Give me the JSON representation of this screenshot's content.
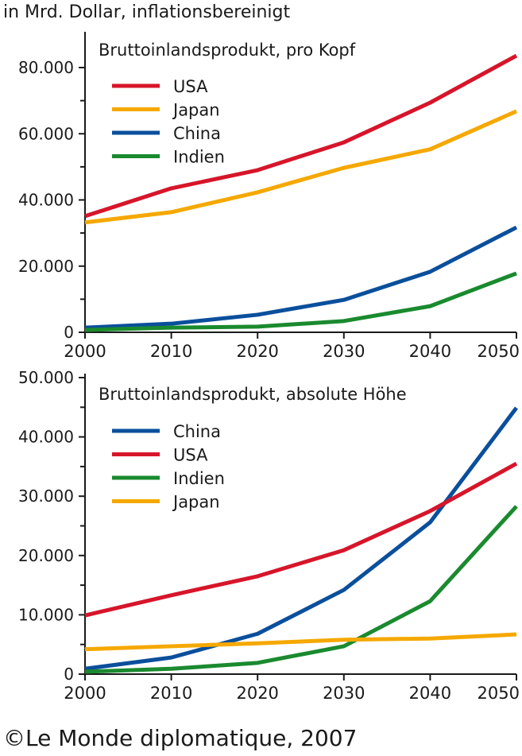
{
  "header": {
    "unit_note": "in Mrd. Dollar, inflationsbereinigt"
  },
  "footer": {
    "credit": "©Le Monde diplomatique, 2007"
  },
  "colors": {
    "USA": "#d7152a",
    "Japan": "#f5a800",
    "China": "#0a4f9c",
    "Indien": "#1a8a2e"
  },
  "chart_data": [
    {
      "type": "line",
      "title": "Bruttoinlandsprodukt, pro Kopf",
      "x": [
        2000,
        2010,
        2020,
        2030,
        2040,
        2050
      ],
      "xticks": [
        "2000",
        "2010",
        "2020",
        "2030",
        "2040",
        "2050"
      ],
      "ylim": [
        0,
        80000
      ],
      "yticks": [
        "0",
        "20.000",
        "40.000",
        "60.000",
        "80.000"
      ],
      "legend_position": "top-left",
      "series": [
        {
          "name": "USA",
          "values": [
            35100,
            43500,
            49000,
            57400,
            69400,
            83600
          ]
        },
        {
          "name": "Japan",
          "values": [
            33200,
            36300,
            42300,
            49700,
            55300,
            66800
          ]
        },
        {
          "name": "China",
          "values": [
            1400,
            2600,
            5300,
            9800,
            18300,
            31700
          ]
        },
        {
          "name": "Indien",
          "values": [
            700,
            1400,
            1700,
            3400,
            7900,
            17800
          ]
        }
      ]
    },
    {
      "type": "line",
      "title": "Bruttoinlandsprodukt, absolute Höhe",
      "x": [
        2000,
        2010,
        2020,
        2030,
        2040,
        2050
      ],
      "xticks": [
        "2000",
        "2010",
        "2020",
        "2030",
        "2040",
        "2050"
      ],
      "ylim": [
        0,
        50000
      ],
      "yticks": [
        "0",
        "10.000",
        "20.000",
        "30.000",
        "40.000",
        "50.000"
      ],
      "legend_position": "top-left",
      "series": [
        {
          "name": "China",
          "values": [
            900,
            2800,
            6800,
            14200,
            25600,
            44900
          ]
        },
        {
          "name": "USA",
          "values": [
            9900,
            13300,
            16500,
            20900,
            27500,
            35500
          ]
        },
        {
          "name": "Indien",
          "values": [
            400,
            900,
            1900,
            4700,
            12300,
            28300
          ]
        },
        {
          "name": "Japan",
          "values": [
            4200,
            4700,
            5200,
            5800,
            6000,
            6700
          ]
        }
      ]
    }
  ]
}
